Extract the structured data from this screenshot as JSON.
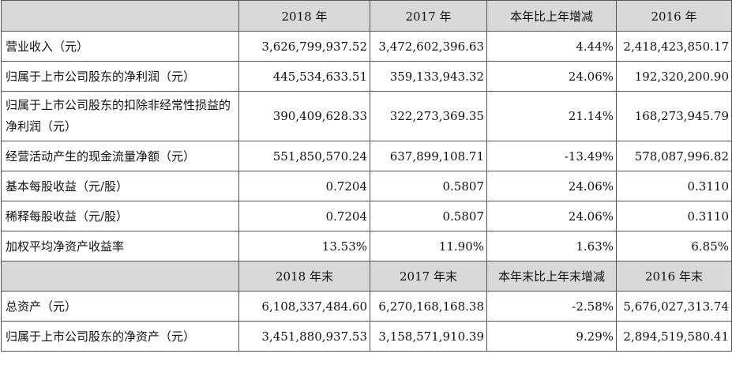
{
  "header1": [
    "2018 年",
    "2017 年",
    "本年比上年增减",
    "2016 年"
  ],
  "rows1": [
    {
      "label": "营业收入（元）",
      "v": [
        "3,626,799,937.52",
        "3,472,602,396.63",
        "4.44%",
        "2,418,423,850.17"
      ]
    },
    {
      "label": "归属于上市公司股东的净利润（元）",
      "v": [
        "445,534,633.51",
        "359,133,943.32",
        "24.06%",
        "192,320,200.90"
      ]
    },
    {
      "label": "归属于上市公司股东的扣除非经常性损益的净利润（元）",
      "v": [
        "390,409,628.33",
        "322,273,369.35",
        "21.14%",
        "168,273,945.79"
      ]
    },
    {
      "label": "经营活动产生的现金流量净额（元）",
      "v": [
        "551,850,570.24",
        "637,899,108.71",
        "-13.49%",
        "578,087,996.82"
      ]
    },
    {
      "label": "基本每股收益（元/股）",
      "v": [
        "0.7204",
        "0.5807",
        "24.06%",
        "0.3110"
      ]
    },
    {
      "label": "稀释每股收益（元/股）",
      "v": [
        "0.7204",
        "0.5807",
        "24.06%",
        "0.3110"
      ]
    },
    {
      "label": "加权平均净资产收益率",
      "v": [
        "13.53%",
        "11.90%",
        "1.63%",
        "6.85%"
      ]
    }
  ],
  "header2": [
    "2018 年末",
    "2017 年末",
    "本年末比上年末增减",
    "2016 年末"
  ],
  "rows2": [
    {
      "label": "总资产（元）",
      "v": [
        "6,108,337,484.60",
        "6,270,168,168.38",
        "-2.58%",
        "5,676,027,313.74"
      ]
    },
    {
      "label": "归属于上市公司股东的净资产（元）",
      "v": [
        "3,451,880,937.53",
        "3,158,571,910.39",
        "9.29%",
        "2,894,519,580.41"
      ]
    }
  ]
}
